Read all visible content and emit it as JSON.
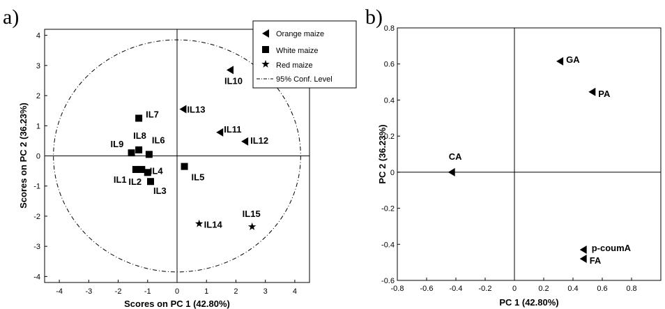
{
  "figure": {
    "panel_a_letter": "a)",
    "panel_b_letter": "b)"
  },
  "chart_data": [
    {
      "type": "scatter",
      "xlabel": "Scores on PC 1 (42.80%)",
      "ylabel": "Scores on PC 2 (36.23%)",
      "xlim": [
        -4.5,
        4.5
      ],
      "ylim": [
        -4.2,
        4.2
      ],
      "xticks": [
        -4,
        -3,
        -2,
        -1,
        0,
        1,
        2,
        3,
        4
      ],
      "yticks": [
        -4,
        -3,
        -2,
        -1,
        0,
        1,
        2,
        3,
        4
      ],
      "grid": false,
      "zero_lines": true,
      "legend_position": "top-right",
      "legend": [
        {
          "label": "Orange maize",
          "marker": "triangle-left"
        },
        {
          "label": "White maize",
          "marker": "square"
        },
        {
          "label": "Red maize",
          "marker": "star"
        },
        {
          "label": "95% Conf. Level",
          "marker": "dashdot-line"
        }
      ],
      "confidence_ellipse": {
        "center": [
          0,
          0
        ],
        "rx": 4.2,
        "ry": 3.85
      },
      "series": [
        {
          "name": "Orange maize",
          "marker": "triangle-left",
          "points": [
            {
              "label": "IL10",
              "x": 1.8,
              "y": 2.85
            },
            {
              "label": "IL13",
              "x": 0.2,
              "y": 1.55
            },
            {
              "label": "IL11",
              "x": 1.45,
              "y": 0.78
            },
            {
              "label": "IL12",
              "x": 2.3,
              "y": 0.48
            }
          ]
        },
        {
          "name": "White maize",
          "marker": "square",
          "points": [
            {
              "label": "IL7",
              "x": -1.3,
              "y": 1.25
            },
            {
              "label": "IL8",
              "x": -1.3,
              "y": 0.2
            },
            {
              "label": "IL9",
              "x": -1.55,
              "y": 0.1
            },
            {
              "label": "IL6",
              "x": -0.95,
              "y": 0.05
            },
            {
              "label": "IL4",
              "x": -1.0,
              "y": -0.55
            },
            {
              "label": "IL1",
              "x": -1.4,
              "y": -0.45
            },
            {
              "label": "IL2",
              "x": -1.2,
              "y": -0.45
            },
            {
              "label": "IL3",
              "x": -0.9,
              "y": -0.85
            },
            {
              "label": "IL5",
              "x": 0.25,
              "y": -0.35
            }
          ]
        },
        {
          "name": "Red maize",
          "marker": "star",
          "points": [
            {
              "label": "IL14",
              "x": 0.75,
              "y": -2.25
            },
            {
              "label": "IL15",
              "x": 2.55,
              "y": -2.35
            }
          ]
        }
      ]
    },
    {
      "type": "scatter",
      "xlabel": "PC 1 (42.80%)",
      "ylabel": "PC 2 (36.23%)",
      "xlim": [
        -0.8,
        1.0
      ],
      "ylim": [
        -0.6,
        0.8
      ],
      "xticks": [
        -0.8,
        -0.6,
        -0.4,
        -0.2,
        0,
        0.2,
        0.4,
        0.6,
        0.8
      ],
      "xtick_labels": [
        "-0.8",
        "-0.6",
        "-0.4",
        "-0.2",
        "0",
        "0.2",
        "0.4",
        "0.6",
        "0.8"
      ],
      "yticks": [
        -0.6,
        -0.4,
        -0.2,
        0,
        0.2,
        0.4,
        0.6,
        0.8
      ],
      "ytick_labels": [
        "-0.6",
        "-0.4",
        "-0.2",
        "0",
        "0.2",
        "0.4",
        "0.6",
        "0.8"
      ],
      "grid": false,
      "zero_lines": true,
      "series": [
        {
          "marker": "triangle-left",
          "points": [
            {
              "label": "GA",
              "x": 0.31,
              "y": 0.615
            },
            {
              "label": "PA",
              "x": 0.53,
              "y": 0.445
            },
            {
              "label": "CA",
              "x": -0.43,
              "y": 0.0
            },
            {
              "label": "p-coumA",
              "x": 0.47,
              "y": -0.43
            },
            {
              "label": "FA",
              "x": 0.47,
              "y": -0.48
            }
          ]
        }
      ]
    }
  ]
}
